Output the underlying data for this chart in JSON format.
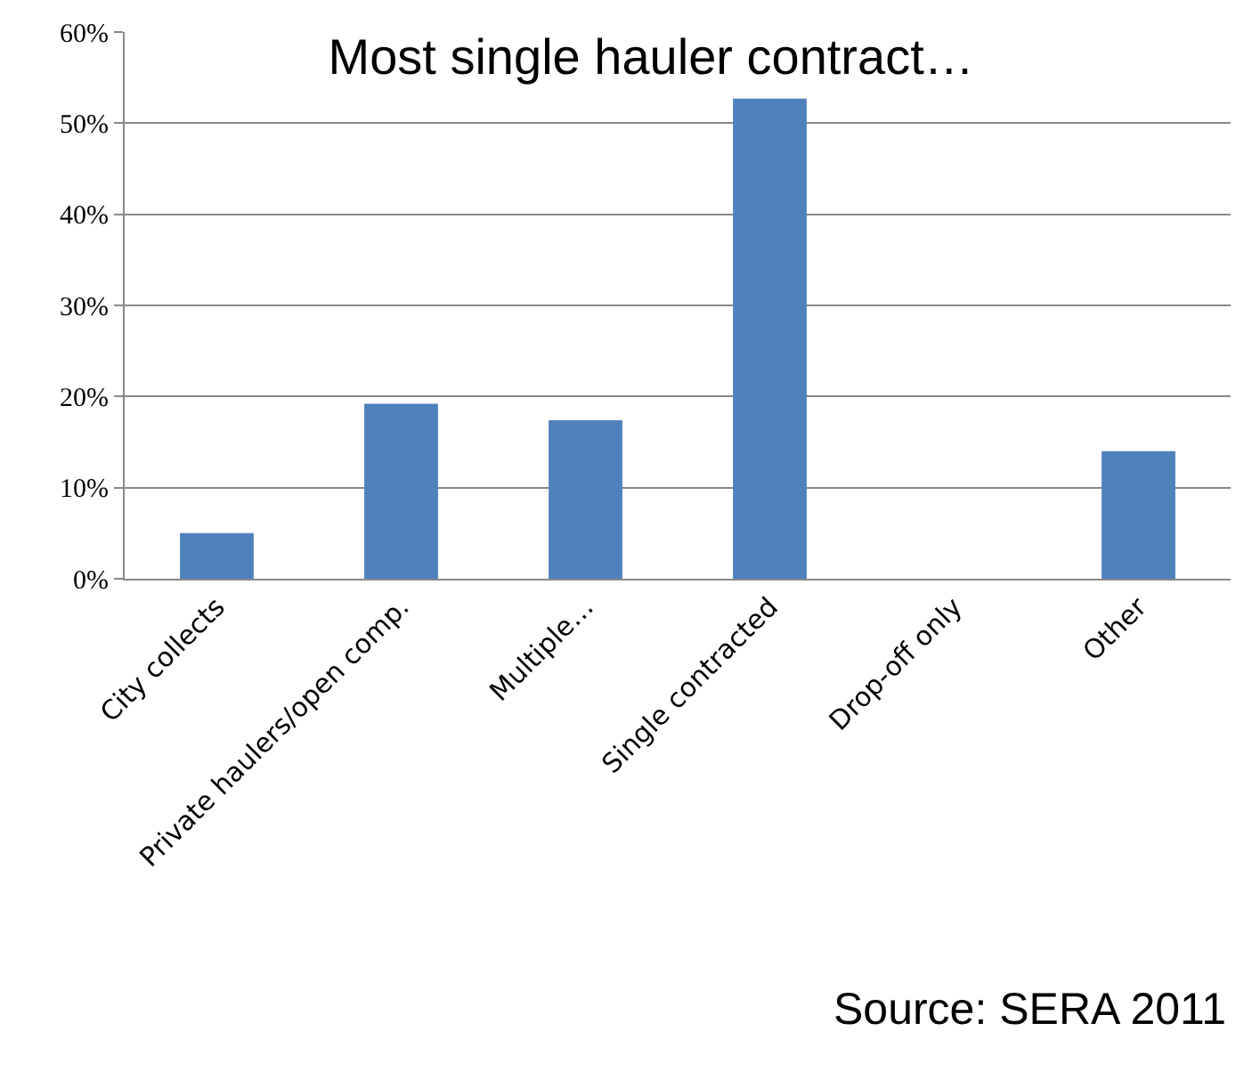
{
  "chart_data": {
    "type": "bar",
    "title": "Most single hauler contract…",
    "categories": [
      "City collects",
      "Private haulers/open comp.",
      "Multiple…",
      "Single contracted",
      "Drop-off only",
      "Other"
    ],
    "values": [
      5.0,
      19.2,
      17.4,
      52.7,
      0,
      14.0
    ],
    "color": "#4f81bd",
    "ylim": [
      0,
      60
    ],
    "yticks": [
      {
        "value": 0,
        "label": "0%"
      },
      {
        "value": 10,
        "label": "10%"
      },
      {
        "value": 20,
        "label": "20%"
      },
      {
        "value": 30,
        "label": "30%"
      },
      {
        "value": 40,
        "label": "40%"
      },
      {
        "value": 50,
        "label": "50%"
      },
      {
        "value": 60,
        "label": "60%"
      }
    ],
    "grid": "y",
    "legend": false,
    "annotations": [
      "Source: SERA 2011"
    ]
  }
}
